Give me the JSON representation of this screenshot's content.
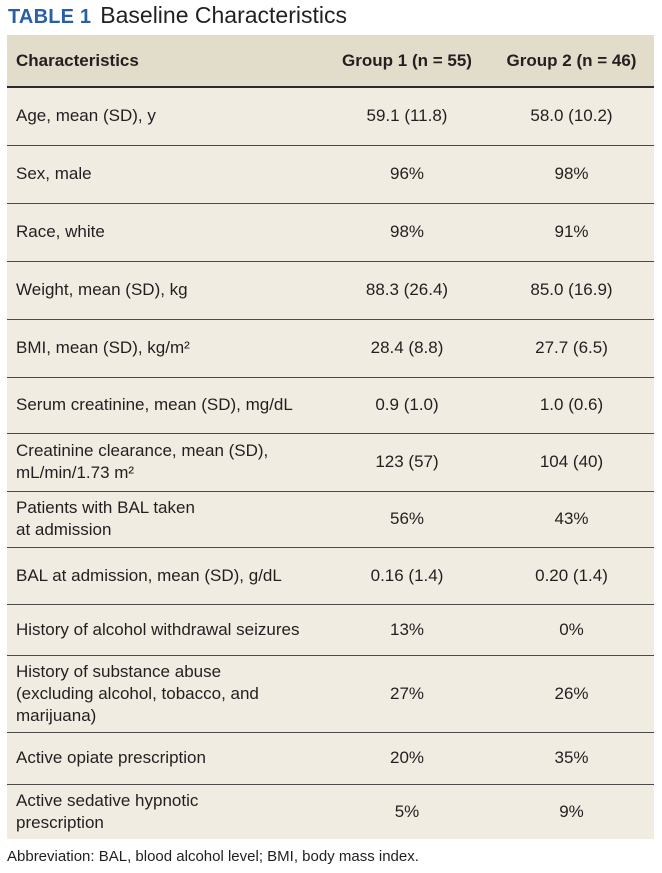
{
  "title": {
    "label": "TABLE 1",
    "text": "Baseline Characteristics"
  },
  "columns": [
    "Characteristics",
    "Group 1 (n = 55)",
    "Group 2 (n = 46)"
  ],
  "rows": [
    {
      "label_lines": [
        "Age, mean (SD), y"
      ],
      "g1": "59.1 (11.8)",
      "g2": "58.0 (10.2)"
    },
    {
      "label_lines": [
        "Sex, male"
      ],
      "g1": "96%",
      "g2": "98%"
    },
    {
      "label_lines": [
        "Race, white"
      ],
      "g1": "98%",
      "g2": "91%"
    },
    {
      "label_lines": [
        "Weight, mean (SD), kg"
      ],
      "g1": "88.3 (26.4)",
      "g2": "85.0 (16.9)"
    },
    {
      "label_lines": [
        "BMI, mean (SD), kg/m²"
      ],
      "g1": "28.4 (8.8)",
      "g2": "27.7 (6.5)"
    },
    {
      "label_lines": [
        "Serum creatinine, mean (SD), mg/dL"
      ],
      "g1": "0.9 (1.0)",
      "g2": "1.0 (0.6)"
    },
    {
      "label_lines": [
        "Creatinine clearance, mean (SD),",
        "mL/min/1.73 m²"
      ],
      "g1": "123 (57)",
      "g2": "104 (40)"
    },
    {
      "label_lines": [
        "Patients with BAL taken",
        "at admission"
      ],
      "g1": "56%",
      "g2": "43%"
    },
    {
      "label_lines": [
        "BAL at admission, mean (SD), g/dL"
      ],
      "g1": "0.16 (1.4)",
      "g2": "0.20 (1.4)"
    },
    {
      "label_lines": [
        "History of alcohol withdrawal seizures"
      ],
      "g1": "13%",
      "g2": "0%"
    },
    {
      "label_lines": [
        "History of substance abuse",
        "(excluding alcohol, tobacco, and",
        "marijuana)"
      ],
      "g1": "27%",
      "g2": "26%"
    },
    {
      "label_lines": [
        "Active opiate prescription"
      ],
      "g1": "20%",
      "g2": "35%"
    },
    {
      "label_lines": [
        "Active sedative hypnotic",
        "prescription"
      ],
      "g1": "5%",
      "g2": "9%"
    }
  ],
  "footnote": "Abbreviation: BAL, blood alcohol level; BMI, body mass index."
}
